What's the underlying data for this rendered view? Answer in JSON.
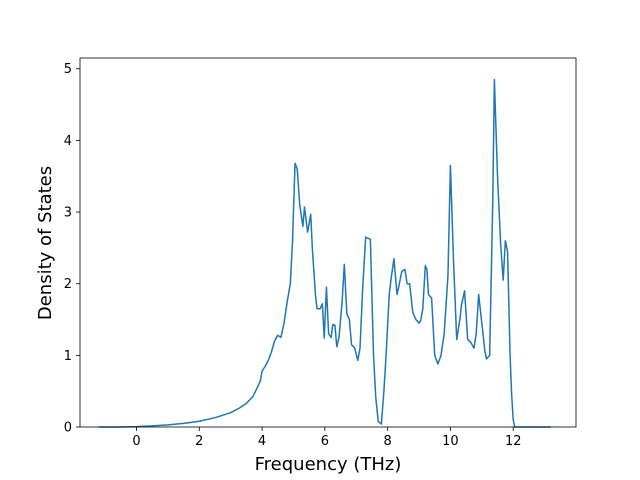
{
  "chart_data": {
    "type": "line",
    "xlabel": "Frequency (THz)",
    "ylabel": "Density of States",
    "xlim": [
      -1.8,
      14.0
    ],
    "ylim": [
      0,
      5.15
    ],
    "xticks": [
      "0",
      "2",
      "4",
      "6",
      "8",
      "10",
      "12"
    ],
    "yticks": [
      "0",
      "1",
      "2",
      "3",
      "4",
      "5"
    ],
    "grid": false,
    "legend": "none",
    "line_color": "#1f77b4",
    "series": [
      {
        "x": [
          -1.2,
          -0.6,
          0,
          0.5,
          1.0,
          1.5,
          2.0,
          2.5,
          3.0,
          3.3,
          3.5,
          3.7,
          3.85,
          3.95,
          4.0,
          4.1,
          4.2,
          4.3,
          4.4,
          4.5,
          4.6,
          4.7,
          4.8,
          4.9,
          4.97,
          5.05,
          5.12,
          5.2,
          5.3,
          5.35,
          5.45,
          5.55,
          5.6,
          5.7,
          5.75,
          5.85,
          5.92,
          5.98,
          6.05,
          6.12,
          6.2,
          6.25,
          6.32,
          6.38,
          6.45,
          6.55,
          6.62,
          6.7,
          6.78,
          6.85,
          6.95,
          7.05,
          7.12,
          7.2,
          7.3,
          7.45,
          7.55,
          7.62,
          7.7,
          7.8,
          7.88,
          7.95,
          8.05,
          8.12,
          8.2,
          8.3,
          8.35,
          8.45,
          8.55,
          8.62,
          8.7,
          8.8,
          8.9,
          9.0,
          9.05,
          9.12,
          9.2,
          9.25,
          9.3,
          9.4,
          9.5,
          9.6,
          9.7,
          9.8,
          9.92,
          10.0,
          10.1,
          10.2,
          10.3,
          10.35,
          10.45,
          10.55,
          10.65,
          10.75,
          10.82,
          10.9,
          11.0,
          11.1,
          11.15,
          11.25,
          11.35,
          11.4,
          11.5,
          11.6,
          11.68,
          11.75,
          11.82,
          11.9,
          11.95,
          12.0,
          12.05,
          12.5,
          13.2
        ],
        "y": [
          0,
          0,
          0.005,
          0.015,
          0.03,
          0.05,
          0.08,
          0.13,
          0.2,
          0.27,
          0.33,
          0.42,
          0.55,
          0.65,
          0.78,
          0.85,
          0.93,
          1.05,
          1.2,
          1.28,
          1.25,
          1.45,
          1.75,
          2.0,
          2.6,
          3.68,
          3.6,
          3.1,
          2.8,
          3.07,
          2.72,
          2.97,
          2.5,
          1.85,
          1.65,
          1.65,
          1.72,
          1.24,
          1.95,
          1.3,
          1.25,
          1.43,
          1.42,
          1.12,
          1.25,
          1.75,
          2.27,
          1.58,
          1.5,
          1.15,
          1.1,
          0.93,
          1.1,
          1.9,
          2.65,
          2.62,
          1.0,
          0.42,
          0.08,
          0.04,
          0.5,
          1.0,
          1.85,
          2.1,
          2.35,
          1.85,
          1.95,
          2.17,
          2.2,
          2.0,
          2.0,
          1.6,
          1.5,
          1.45,
          1.48,
          1.65,
          2.25,
          2.2,
          1.85,
          1.8,
          1.0,
          0.88,
          1.0,
          1.3,
          2.1,
          3.65,
          2.3,
          1.22,
          1.5,
          1.7,
          1.9,
          1.22,
          1.18,
          1.1,
          1.3,
          1.85,
          1.45,
          1.05,
          0.95,
          1.0,
          3.2,
          4.85,
          3.5,
          2.55,
          2.05,
          2.6,
          2.45,
          1.0,
          0.45,
          0.1,
          0,
          0,
          0
        ]
      }
    ]
  }
}
